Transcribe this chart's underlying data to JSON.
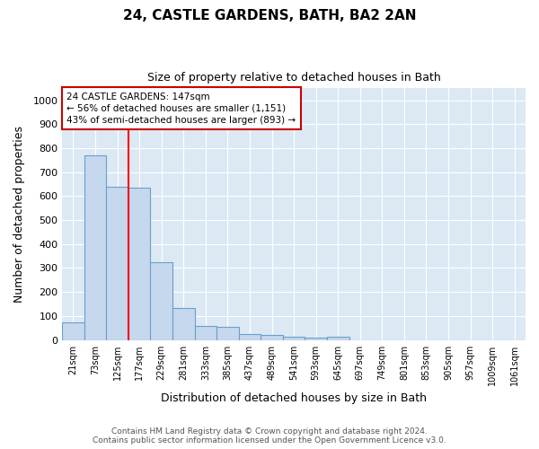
{
  "title1": "24, CASTLE GARDENS, BATH, BA2 2AN",
  "title2": "Size of property relative to detached houses in Bath",
  "xlabel": "Distribution of detached houses by size in Bath",
  "ylabel": "Number of detached properties",
  "bar_labels": [
    "21sqm",
    "73sqm",
    "125sqm",
    "177sqm",
    "229sqm",
    "281sqm",
    "333sqm",
    "385sqm",
    "437sqm",
    "489sqm",
    "541sqm",
    "593sqm",
    "645sqm",
    "697sqm",
    "749sqm",
    "801sqm",
    "853sqm",
    "905sqm",
    "957sqm",
    "1009sqm",
    "1061sqm"
  ],
  "bar_values": [
    75,
    770,
    640,
    635,
    325,
    135,
    60,
    55,
    25,
    20,
    15,
    10,
    15,
    0,
    0,
    0,
    0,
    0,
    0,
    0,
    0
  ],
  "bar_color": "#c5d8ed",
  "bar_edge_color": "#6a9fca",
  "annotation_text": "24 CASTLE GARDENS: 147sqm\n← 56% of detached houses are smaller (1,151)\n43% of semi-detached houses are larger (893) →",
  "annotation_box_color": "#cc0000",
  "annotation_text_color": "#000000",
  "ylim": [
    0,
    1050
  ],
  "yticks": [
    0,
    100,
    200,
    300,
    400,
    500,
    600,
    700,
    800,
    900,
    1000
  ],
  "background_color": "#dce9f5",
  "grid_color": "#ffffff",
  "fig_bg_color": "#ffffff",
  "footer_line1": "Contains HM Land Registry data © Crown copyright and database right 2024.",
  "footer_line2": "Contains public sector information licensed under the Open Government Licence v3.0."
}
